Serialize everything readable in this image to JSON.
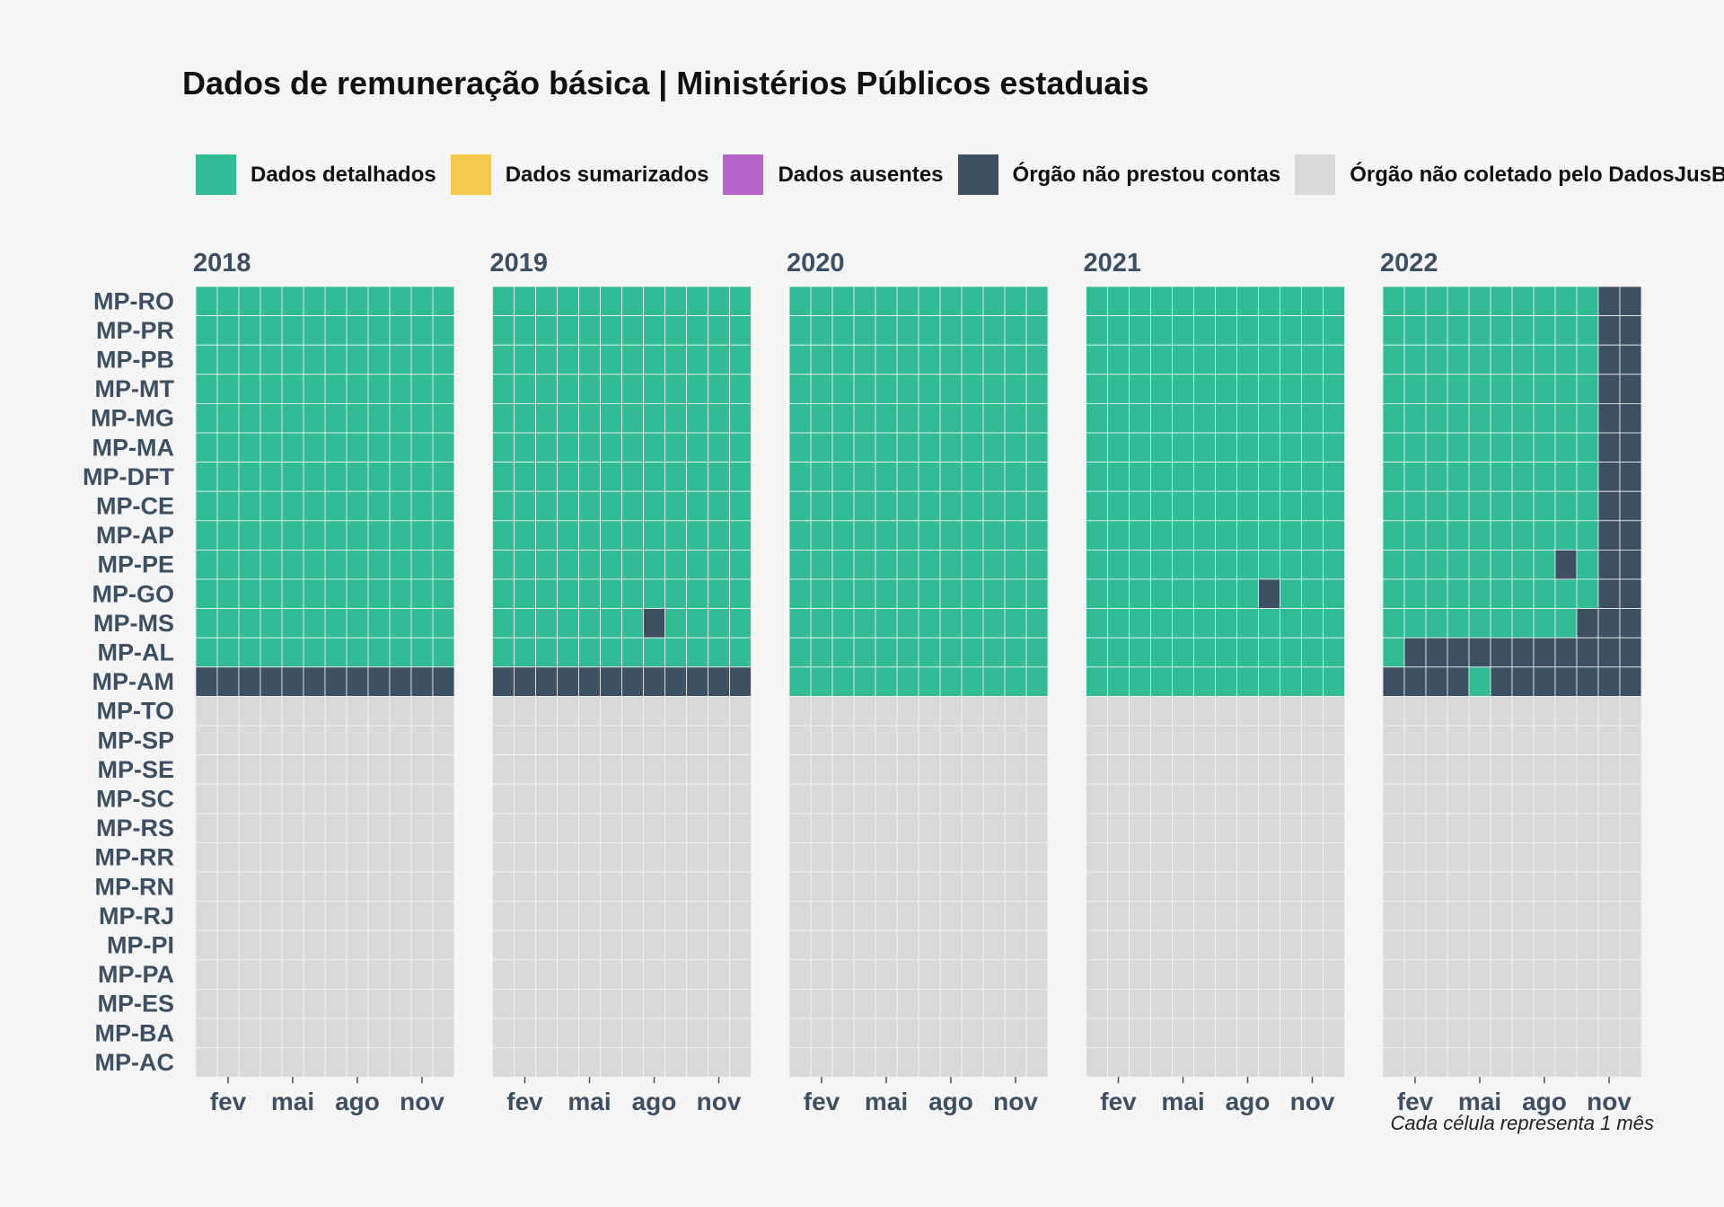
{
  "chart_data": {
    "type": "heatmap",
    "title": "Dados de remuneração básica | Ministérios Públicos estaduais",
    "caption": "Cada célula representa 1 mês",
    "legend": [
      {
        "key": "D",
        "label": "Dados detalhados",
        "color": "#31bc96"
      },
      {
        "key": "S",
        "label": "Dados sumarizados",
        "color": "#f2c94c"
      },
      {
        "key": "A",
        "label": "Dados ausentes",
        "color": "#b464c8"
      },
      {
        "key": "N",
        "label": "Órgão não prestou contas",
        "color": "#3d5063"
      },
      {
        "key": "X",
        "label": "Órgão não coletado pelo DadosJusBr",
        "color": "#d9d9d9"
      }
    ],
    "legend_position": "top",
    "years": [
      "2018",
      "2019",
      "2020",
      "2021",
      "2022"
    ],
    "month_tick_labels": [
      "fev",
      "mai",
      "ago",
      "nov"
    ],
    "month_tick_positions": [
      2,
      5,
      8,
      11
    ],
    "organs": [
      "MP-RO",
      "MP-PR",
      "MP-PB",
      "MP-MT",
      "MP-MG",
      "MP-MA",
      "MP-DFT",
      "MP-CE",
      "MP-AP",
      "MP-PE",
      "MP-GO",
      "MP-MS",
      "MP-AL",
      "MP-AM",
      "MP-TO",
      "MP-SP",
      "MP-SE",
      "MP-SC",
      "MP-RS",
      "MP-RR",
      "MP-RN",
      "MP-RJ",
      "MP-PI",
      "MP-PA",
      "MP-ES",
      "MP-BA",
      "MP-AC"
    ],
    "status": {
      "2018": {
        "MP-RO": "DDDDDDDDDDDD",
        "MP-PR": "DDDDDDDDDDDD",
        "MP-PB": "DDDDDDDDDDDD",
        "MP-MT": "DDDDDDDDDDDD",
        "MP-MG": "DDDDDDDDDDDD",
        "MP-MA": "DDDDDDDDDDDD",
        "MP-DFT": "DDDDDDDDDDDD",
        "MP-CE": "DDDDDDDDDDDD",
        "MP-AP": "DDDDDDDDDDDD",
        "MP-PE": "DDDDDDDDDDDD",
        "MP-GO": "DDDDDDDDDDDD",
        "MP-MS": "DDDDDDDDDDDD",
        "MP-AL": "DDDDDDDDDDDD",
        "MP-AM": "NNNNNNNNNNNN",
        "MP-TO": "XXXXXXXXXXXX",
        "MP-SP": "XXXXXXXXXXXX",
        "MP-SE": "XXXXXXXXXXXX",
        "MP-SC": "XXXXXXXXXXXX",
        "MP-RS": "XXXXXXXXXXXX",
        "MP-RR": "XXXXXXXXXXXX",
        "MP-RN": "XXXXXXXXXXXX",
        "MP-RJ": "XXXXXXXXXXXX",
        "MP-PI": "XXXXXXXXXXXX",
        "MP-PA": "XXXXXXXXXXXX",
        "MP-ES": "XXXXXXXXXXXX",
        "MP-BA": "XXXXXXXXXXXX",
        "MP-AC": "XXXXXXXXXXXX"
      },
      "2019": {
        "MP-RO": "DDDDDDDDDDDD",
        "MP-PR": "DDDDDDDDDDDD",
        "MP-PB": "DDDDDDDDDDDD",
        "MP-MT": "DDDDDDDDDDDD",
        "MP-MG": "DDDDDDDDDDDD",
        "MP-MA": "DDDDDDDDDDDD",
        "MP-DFT": "DDDDDDDDDDDD",
        "MP-CE": "DDDDDDDDDDDD",
        "MP-AP": "DDDDDDDDDDDD",
        "MP-PE": "DDDDDDDDDDDD",
        "MP-GO": "DDDDDDDDDDDD",
        "MP-MS": "DDDDDDDNDDDD",
        "MP-AL": "DDDDDDDDDDDD",
        "MP-AM": "NNNNNNNNNNNN",
        "MP-TO": "XXXXXXXXXXXX",
        "MP-SP": "XXXXXXXXXXXX",
        "MP-SE": "XXXXXXXXXXXX",
        "MP-SC": "XXXXXXXXXXXX",
        "MP-RS": "XXXXXXXXXXXX",
        "MP-RR": "XXXXXXXXXXXX",
        "MP-RN": "XXXXXXXXXXXX",
        "MP-RJ": "XXXXXXXXXXXX",
        "MP-PI": "XXXXXXXXXXXX",
        "MP-PA": "XXXXXXXXXXXX",
        "MP-ES": "XXXXXXXXXXXX",
        "MP-BA": "XXXXXXXXXXXX",
        "MP-AC": "XXXXXXXXXXXX"
      },
      "2020": {
        "MP-RO": "DDDDDDDDDDDD",
        "MP-PR": "DDDDDDDDDDDD",
        "MP-PB": "DDDDDDDDDDDD",
        "MP-MT": "DDDDDDDDDDDD",
        "MP-MG": "DDDDDDDDDDDD",
        "MP-MA": "DDDDDDDDDDDD",
        "MP-DFT": "DDDDDDDDDDDD",
        "MP-CE": "DDDDDDDDDDDD",
        "MP-AP": "DDDDDDDDDDDD",
        "MP-PE": "DDDDDDDDDDDD",
        "MP-GO": "DDDDDDDDDDDD",
        "MP-MS": "DDDDDDDDDDDD",
        "MP-AL": "DDDDDDDDDDDD",
        "MP-AM": "DDDDDDDDDDDD",
        "MP-TO": "XXXXXXXXXXXX",
        "MP-SP": "XXXXXXXXXXXX",
        "MP-SE": "XXXXXXXXXXXX",
        "MP-SC": "XXXXXXXXXXXX",
        "MP-RS": "XXXXXXXXXXXX",
        "MP-RR": "XXXXXXXXXXXX",
        "MP-RN": "XXXXXXXXXXXX",
        "MP-RJ": "XXXXXXXXXXXX",
        "MP-PI": "XXXXXXXXXXXX",
        "MP-PA": "XXXXXXXXXXXX",
        "MP-ES": "XXXXXXXXXXXX",
        "MP-BA": "XXXXXXXXXXXX",
        "MP-AC": "XXXXXXXXXXXX"
      },
      "2021": {
        "MP-RO": "DDDDDDDDDDDD",
        "MP-PR": "DDDDDDDDDDDD",
        "MP-PB": "DDDDDDDDDDDD",
        "MP-MT": "DDDDDDDDDDDD",
        "MP-MG": "DDDDDDDDDDDD",
        "MP-MA": "DDDDDDDDDDDD",
        "MP-DFT": "DDDDDDDDDDDD",
        "MP-CE": "DDDDDDDDDDDD",
        "MP-AP": "DDDDDDDDDDDD",
        "MP-PE": "DDDDDDDDDDDD",
        "MP-GO": "DDDDDDDDNDDD",
        "MP-MS": "DDDDDDDDDDDD",
        "MP-AL": "DDDDDDDDDDDD",
        "MP-AM": "DDDDDDDDDDDD",
        "MP-TO": "XXXXXXXXXXXX",
        "MP-SP": "XXXXXXXXXXXX",
        "MP-SE": "XXXXXXXXXXXX",
        "MP-SC": "XXXXXXXXXXXX",
        "MP-RS": "XXXXXXXXXXXX",
        "MP-RR": "XXXXXXXXXXXX",
        "MP-RN": "XXXXXXXXXXXX",
        "MP-RJ": "XXXXXXXXXXXX",
        "MP-PI": "XXXXXXXXXXXX",
        "MP-PA": "XXXXXXXXXXXX",
        "MP-ES": "XXXXXXXXXXXX",
        "MP-BA": "XXXXXXXXXXXX",
        "MP-AC": "XXXXXXXXXXXX"
      },
      "2022": {
        "MP-RO": "DDDDDDDDDDNN",
        "MP-PR": "DDDDDDDDDDNN",
        "MP-PB": "DDDDDDDDDDNN",
        "MP-MT": "DDDDDDDDDDNN",
        "MP-MG": "DDDDDDDDDDNN",
        "MP-MA": "DDDDDDDDDDNN",
        "MP-DFT": "DDDDDDDDDDNN",
        "MP-CE": "DDDDDDDDDDNN",
        "MP-AP": "DDDDDDDDDDNN",
        "MP-PE": "DDDDDDDDNDNN",
        "MP-GO": "DDDDDDDDDDNN",
        "MP-MS": "DDDDDDDDDNNN",
        "MP-AL": "DNNNNNNNNNNN",
        "MP-AM": "NNNNDNNNNNNN",
        "MP-TO": "XXXXXXXXXXXX",
        "MP-SP": "XXXXXXXXXXXX",
        "MP-SE": "XXXXXXXXXXXX",
        "MP-SC": "XXXXXXXXXXXX",
        "MP-RS": "XXXXXXXXXXXX",
        "MP-RR": "XXXXXXXXXXXX",
        "MP-RN": "XXXXXXXXXXXX",
        "MP-RJ": "XXXXXXXXXXXX",
        "MP-PI": "XXXXXXXXXXXX",
        "MP-PA": "XXXXXXXXXXXX",
        "MP-ES": "XXXXXXXXXXXX",
        "MP-BA": "XXXXXXXXXXXX",
        "MP-AC": "XXXXXXXXXXXX"
      }
    }
  }
}
